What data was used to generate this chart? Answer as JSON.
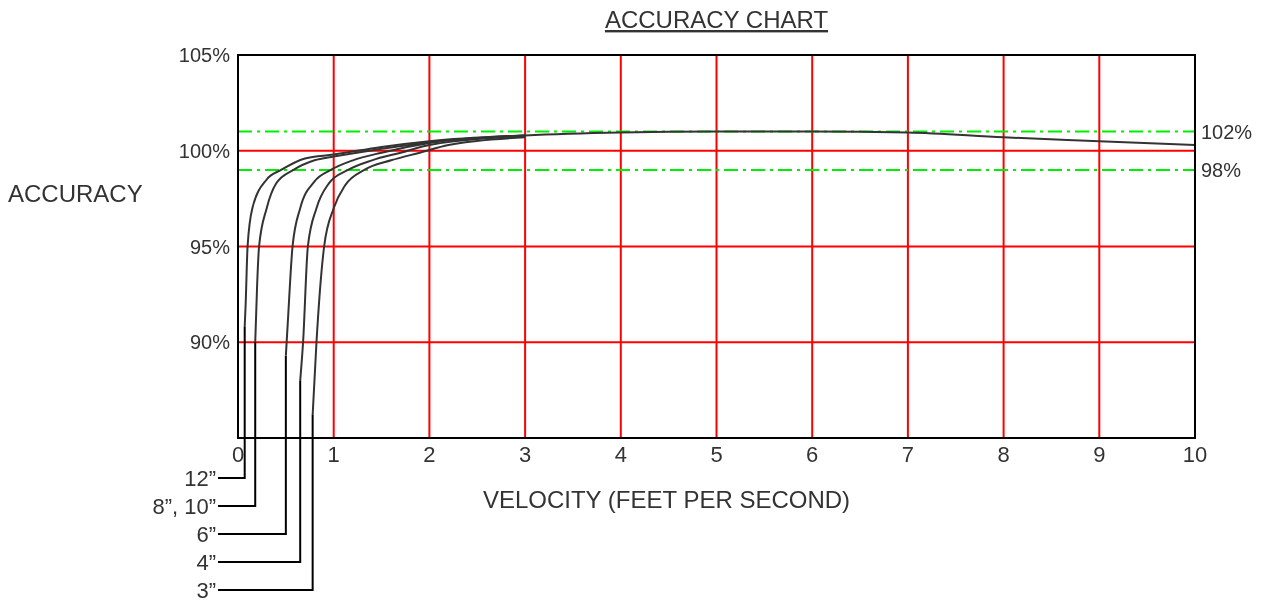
{
  "chart_data": {
    "type": "line",
    "title": "ACCURACY CHART",
    "xlabel": "VELOCITY (FEET PER SECOND)",
    "ylabel": "ACCURACY",
    "xlim": [
      0,
      10
    ],
    "xticks": [
      0,
      1,
      2,
      3,
      4,
      5,
      6,
      7,
      8,
      9,
      10
    ],
    "ylim": [
      85,
      105
    ],
    "yticks": [
      {
        "value": 90,
        "label": "90%"
      },
      {
        "value": 95,
        "label": "95%"
      },
      {
        "value": 100,
        "label": "100%"
      },
      {
        "value": 105,
        "label": "105%"
      }
    ],
    "grid": true,
    "marker": "none",
    "line_style": "solid",
    "ref_lines": [
      {
        "axis": "y",
        "value": 101,
        "color": "#00ee00",
        "line_style": "dashed"
      },
      {
        "axis": "y",
        "value": 99,
        "color": "#00ee00",
        "line_style": "dashed"
      }
    ],
    "annotations": [
      "102%",
      "98%"
    ],
    "series": [
      {
        "name": "12”",
        "color": "#333333",
        "x": [
          0.07,
          0.08,
          0.1,
          0.15,
          0.3,
          0.45,
          0.7,
          1,
          1.5,
          2,
          3,
          4,
          5,
          6,
          7,
          8,
          9,
          10
        ],
        "values": [
          90.8,
          92,
          95,
          97,
          98.5,
          99,
          99.6,
          99.8,
          100.2,
          100.5,
          100.8,
          100.95,
          101,
          101,
          100.95,
          100.7,
          100.5,
          100.3
        ]
      },
      {
        "name": "8”, 10”",
        "color": "#333333",
        "x": [
          0.18,
          0.2,
          0.22,
          0.3,
          0.4,
          0.58,
          0.8,
          1,
          1.5,
          2,
          3
        ],
        "values": [
          90,
          93,
          95,
          97,
          98.3,
          99,
          99.5,
          99.7,
          100.1,
          100.45,
          100.8
        ]
      },
      {
        "name": "6”",
        "color": "#333333",
        "x": [
          0.5,
          0.52,
          0.57,
          0.65,
          0.8,
          0.97,
          1.2,
          1.5,
          2,
          3
        ],
        "values": [
          89.3,
          91,
          95,
          97,
          98.4,
          99,
          99.5,
          99.9,
          100.4,
          100.8
        ]
      },
      {
        "name": "4”",
        "color": "#333333",
        "x": [
          0.65,
          0.68,
          0.73,
          0.82,
          0.95,
          1.15,
          1.4,
          1.7,
          2,
          3
        ],
        "values": [
          88,
          90,
          95,
          97,
          98.3,
          99,
          99.5,
          99.9,
          100.3,
          100.75
        ]
      },
      {
        "name": "3”",
        "color": "#333333",
        "x": [
          0.78,
          0.82,
          0.9,
          1,
          1.12,
          1.32,
          1.6,
          1.9,
          2.2,
          3
        ],
        "values": [
          86.2,
          90,
          95,
          97,
          98.2,
          99,
          99.5,
          99.9,
          100.3,
          100.7
        ]
      }
    ]
  }
}
